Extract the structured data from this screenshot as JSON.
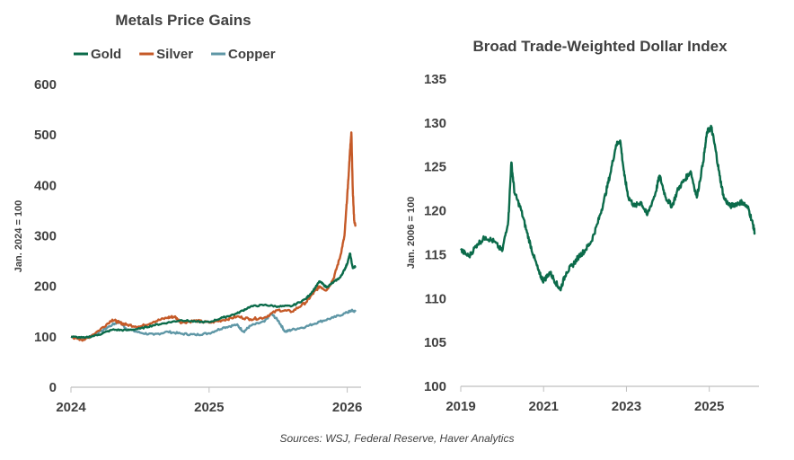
{
  "source": "Sources: WSJ, Federal Reserve, Haver Analytics",
  "colors": {
    "gold": "#0b6b4a",
    "silver": "#c55a28",
    "copper": "#5f97a6",
    "text": "#404040",
    "axis": "#bfbfbf"
  },
  "chart_data": [
    {
      "type": "line",
      "title": "Metals Price Gains",
      "ylabel": "Jan. 2024 = 100",
      "xlabel": "",
      "ylim": [
        0,
        600
      ],
      "yticks": [
        0,
        100,
        200,
        300,
        400,
        500,
        600
      ],
      "xlim": [
        2024,
        2026.1
      ],
      "xticks": [
        {
          "value": 2024,
          "label": "2024"
        },
        {
          "value": 2025,
          "label": "2025"
        },
        {
          "value": 2026,
          "label": "2026"
        }
      ],
      "legend_position": "top-left",
      "grid": false,
      "series": [
        {
          "name": "Gold",
          "color": "#0b6b4a",
          "points": [
            [
              2024.0,
              100
            ],
            [
              2024.1,
              98
            ],
            [
              2024.2,
              104
            ],
            [
              2024.3,
              114
            ],
            [
              2024.4,
              113
            ],
            [
              2024.5,
              116
            ],
            [
              2024.6,
              123
            ],
            [
              2024.7,
              128
            ],
            [
              2024.8,
              133
            ],
            [
              2024.9,
              130
            ],
            [
              2025.0,
              129
            ],
            [
              2025.1,
              138
            ],
            [
              2025.2,
              146
            ],
            [
              2025.3,
              160
            ],
            [
              2025.4,
              163
            ],
            [
              2025.5,
              160
            ],
            [
              2025.6,
              161
            ],
            [
              2025.7,
              175
            ],
            [
              2025.75,
              190
            ],
            [
              2025.8,
              210
            ],
            [
              2025.85,
              198
            ],
            [
              2025.9,
              208
            ],
            [
              2025.95,
              218
            ],
            [
              2025.98,
              233
            ],
            [
              2026.0,
              245
            ],
            [
              2026.02,
              265
            ],
            [
              2026.04,
              236
            ],
            [
              2026.06,
              240
            ]
          ]
        },
        {
          "name": "Silver",
          "color": "#c55a28",
          "points": [
            [
              2024.0,
              100
            ],
            [
              2024.05,
              96
            ],
            [
              2024.1,
              94
            ],
            [
              2024.2,
              112
            ],
            [
              2024.3,
              134
            ],
            [
              2024.35,
              128
            ],
            [
              2024.4,
              124
            ],
            [
              2024.5,
              120
            ],
            [
              2024.6,
              130
            ],
            [
              2024.7,
              138
            ],
            [
              2024.75,
              140
            ],
            [
              2024.8,
              128
            ],
            [
              2024.9,
              132
            ],
            [
              2025.0,
              128
            ],
            [
              2025.1,
              133
            ],
            [
              2025.2,
              140
            ],
            [
              2025.3,
              135
            ],
            [
              2025.4,
              138
            ],
            [
              2025.5,
              153
            ],
            [
              2025.6,
              150
            ],
            [
              2025.7,
              168
            ],
            [
              2025.75,
              185
            ],
            [
              2025.8,
              200
            ],
            [
              2025.85,
              192
            ],
            [
              2025.9,
              215
            ],
            [
              2025.95,
              260
            ],
            [
              2025.98,
              300
            ],
            [
              2026.0,
              380
            ],
            [
              2026.01,
              420
            ],
            [
              2026.02,
              470
            ],
            [
              2026.03,
              505
            ],
            [
              2026.04,
              390
            ],
            [
              2026.05,
              330
            ],
            [
              2026.06,
              320
            ]
          ]
        },
        {
          "name": "Copper",
          "color": "#5f97a6",
          "points": [
            [
              2024.0,
              100
            ],
            [
              2024.1,
              97
            ],
            [
              2024.2,
              108
            ],
            [
              2024.3,
              124
            ],
            [
              2024.35,
              130
            ],
            [
              2024.4,
              116
            ],
            [
              2024.5,
              108
            ],
            [
              2024.6,
              104
            ],
            [
              2024.7,
              110
            ],
            [
              2024.8,
              106
            ],
            [
              2024.9,
              104
            ],
            [
              2025.0,
              107
            ],
            [
              2025.1,
              118
            ],
            [
              2025.2,
              124
            ],
            [
              2025.25,
              110
            ],
            [
              2025.3,
              122
            ],
            [
              2025.4,
              130
            ],
            [
              2025.45,
              146
            ],
            [
              2025.5,
              132
            ],
            [
              2025.55,
              110
            ],
            [
              2025.6,
              114
            ],
            [
              2025.7,
              120
            ],
            [
              2025.8,
              130
            ],
            [
              2025.9,
              138
            ],
            [
              2026.0,
              148
            ],
            [
              2026.03,
              152
            ],
            [
              2026.06,
              150
            ]
          ]
        }
      ]
    },
    {
      "type": "line",
      "title": "Broad Trade-Weighted Dollar Index",
      "ylabel": "Jan. 2006 = 100",
      "xlabel": "",
      "ylim": [
        100,
        135
      ],
      "yticks": [
        100,
        105,
        110,
        115,
        120,
        125,
        130,
        135
      ],
      "xlim": [
        2019,
        2026.2
      ],
      "xticks": [
        {
          "value": 2019,
          "label": "2019"
        },
        {
          "value": 2021,
          "label": "2021"
        },
        {
          "value": 2023,
          "label": "2023"
        },
        {
          "value": 2025,
          "label": "2025"
        }
      ],
      "grid": false,
      "series": [
        {
          "name": "",
          "color": "#0b6b4a",
          "points": [
            [
              2019.0,
              115.5
            ],
            [
              2019.2,
              114.8
            ],
            [
              2019.4,
              116.2
            ],
            [
              2019.6,
              117.0
            ],
            [
              2019.8,
              116.5
            ],
            [
              2020.0,
              115.4
            ],
            [
              2020.15,
              119.0
            ],
            [
              2020.22,
              125.5
            ],
            [
              2020.3,
              122.0
            ],
            [
              2020.45,
              120.2
            ],
            [
              2020.6,
              117.5
            ],
            [
              2020.75,
              115.0
            ],
            [
              2020.9,
              112.8
            ],
            [
              2021.0,
              112.0
            ],
            [
              2021.15,
              113.0
            ],
            [
              2021.3,
              111.8
            ],
            [
              2021.4,
              111.0
            ],
            [
              2021.55,
              113.0
            ],
            [
              2021.7,
              113.8
            ],
            [
              2021.85,
              114.8
            ],
            [
              2022.0,
              115.5
            ],
            [
              2022.15,
              116.5
            ],
            [
              2022.3,
              118.5
            ],
            [
              2022.45,
              121.0
            ],
            [
              2022.6,
              124.0
            ],
            [
              2022.75,
              127.5
            ],
            [
              2022.85,
              128.0
            ],
            [
              2022.95,
              124.0
            ],
            [
              2023.05,
              121.5
            ],
            [
              2023.2,
              120.5
            ],
            [
              2023.35,
              121.0
            ],
            [
              2023.5,
              119.5
            ],
            [
              2023.7,
              122.0
            ],
            [
              2023.8,
              124.0
            ],
            [
              2023.95,
              121.5
            ],
            [
              2024.1,
              120.5
            ],
            [
              2024.25,
              122.5
            ],
            [
              2024.4,
              123.5
            ],
            [
              2024.55,
              124.5
            ],
            [
              2024.7,
              121.5
            ],
            [
              2024.85,
              125.5
            ],
            [
              2024.95,
              129.0
            ],
            [
              2025.05,
              129.5
            ],
            [
              2025.15,
              127.0
            ],
            [
              2025.25,
              124.0
            ],
            [
              2025.35,
              121.5
            ],
            [
              2025.5,
              120.5
            ],
            [
              2025.65,
              120.8
            ],
            [
              2025.8,
              121.0
            ],
            [
              2025.95,
              120.2
            ],
            [
              2026.05,
              118.5
            ],
            [
              2026.1,
              117.5
            ]
          ]
        }
      ]
    }
  ]
}
